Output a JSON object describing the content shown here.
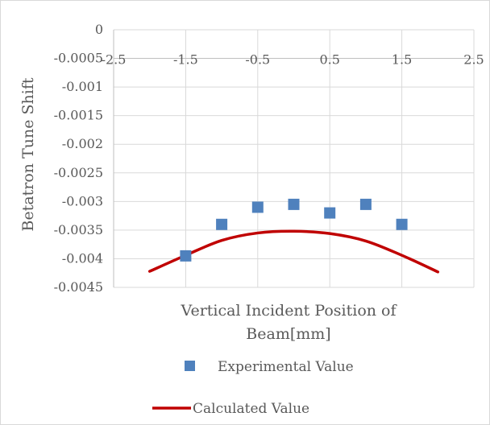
{
  "chart_data": {
    "type": "scatter",
    "title": "",
    "xlabel": "Vertical Incident Position of Beam[mm]",
    "xlabel_lines": [
      "Vertical Incident Position of",
      "Beam[mm]"
    ],
    "ylabel": "Betatron Tune Shift",
    "xlim": [
      -2.5,
      2.5
    ],
    "ylim": [
      -0.0045,
      0
    ],
    "x_ticks": [
      -2.5,
      -1.5,
      -0.5,
      0.5,
      1.5,
      2.5
    ],
    "x_tick_labels": [
      "-2.5",
      "-1.5",
      "-0.5",
      "0.5",
      "1.5",
      "2.5"
    ],
    "y_ticks": [
      0,
      -0.0005,
      -0.001,
      -0.0015,
      -0.002,
      -0.0025,
      -0.003,
      -0.0035,
      -0.004,
      -0.0045
    ],
    "y_tick_labels": [
      "0",
      "-0.0005",
      "-0.001",
      "-0.0015",
      "-0.002",
      "-0.0025",
      "-0.003",
      "-0.0035",
      "-0.004",
      "-0.0045"
    ],
    "x_axis_crosses_at": -0.0005,
    "grid": true,
    "legend_position": "bottom",
    "series": [
      {
        "name": "Experimental Value",
        "kind": "markers",
        "color": "#4f81bd",
        "marker": "square",
        "x": [
          -1.5,
          -1.0,
          -0.5,
          0.0,
          0.5,
          1.0,
          1.5
        ],
        "y": [
          -0.00395,
          -0.0034,
          -0.0031,
          -0.00305,
          -0.0032,
          -0.00305,
          -0.0034
        ]
      },
      {
        "name": "Calculated Value",
        "kind": "line",
        "color": "#c00000",
        "x": [
          -2.0,
          -1.5,
          -1.0,
          -0.5,
          0.0,
          0.5,
          1.0,
          1.5,
          2.0
        ],
        "y": [
          -0.00422,
          -0.00394,
          -0.00368,
          -0.00355,
          -0.00352,
          -0.00356,
          -0.00369,
          -0.00394,
          -0.00423
        ]
      }
    ]
  }
}
